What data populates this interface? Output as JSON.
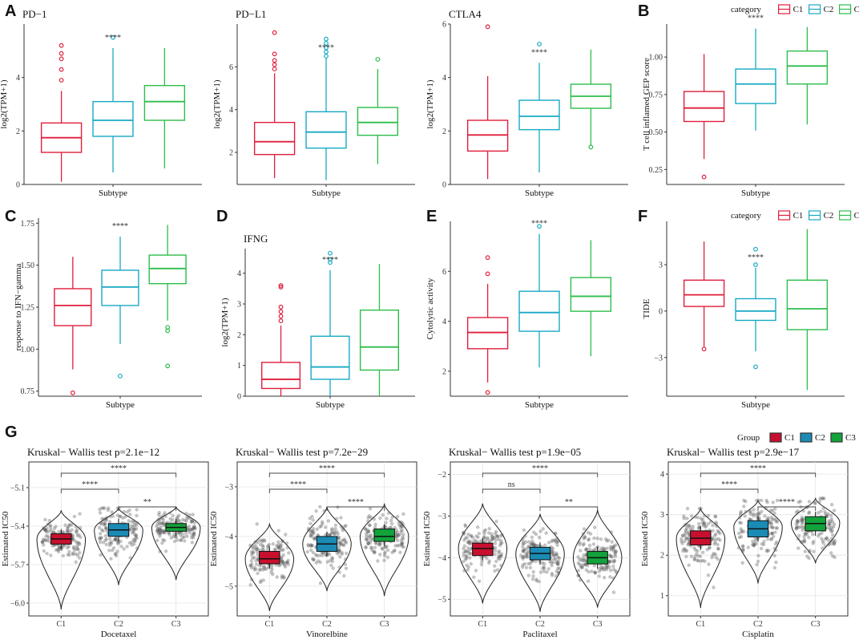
{
  "figure": {
    "legend_top": {
      "title": "category",
      "items": [
        "C1",
        "C2",
        "C3"
      ],
      "colors": [
        "#E01F3D",
        "#18A9C5",
        "#2DBE4B"
      ]
    },
    "legend_bottom": {
      "title": "Group",
      "items": [
        "C1",
        "C2",
        "C3"
      ],
      "colors": [
        "#C8102E",
        "#1B8BB5",
        "#12A33B"
      ]
    }
  },
  "chart_data": [
    {
      "type": "box",
      "panel": "A",
      "title": "PD−1",
      "xlabel": "Subtype",
      "ylabel": "log2(TPM+1)",
      "ylim": [
        0,
        6
      ],
      "yticks": [
        0,
        2,
        4
      ],
      "annotation": "****",
      "series": [
        {
          "name": "C1",
          "q1": 1.2,
          "median": 1.75,
          "q3": 2.3,
          "whisker_low": 0.1,
          "whisker_high": 3.5,
          "outliers": [
            3.9,
            4.3,
            4.7,
            4.9,
            5.2
          ]
        },
        {
          "name": "C2",
          "q1": 1.8,
          "median": 2.4,
          "q3": 3.1,
          "whisker_low": 0.45,
          "whisker_high": 5.1,
          "outliers": [
            5.5
          ]
        },
        {
          "name": "C3",
          "q1": 2.4,
          "median": 3.1,
          "q3": 3.7,
          "whisker_low": 0.6,
          "whisker_high": 5.1,
          "outliers": []
        }
      ]
    },
    {
      "type": "box",
      "panel": "",
      "title": "PD−L1",
      "xlabel": "Subtype",
      "ylabel": "log2(TPM+1)",
      "ylim": [
        0.5,
        8
      ],
      "yticks": [
        2,
        4,
        6
      ],
      "annotation": "****",
      "series": [
        {
          "name": "C1",
          "q1": 1.9,
          "median": 2.5,
          "q3": 3.4,
          "whisker_low": 0.8,
          "whisker_high": 5.7,
          "outliers": [
            5.9,
            6.1,
            6.3,
            6.6,
            7.6
          ]
        },
        {
          "name": "C2",
          "q1": 2.2,
          "median": 2.95,
          "q3": 3.9,
          "whisker_low": 0.7,
          "whisker_high": 6.4,
          "outliers": [
            6.5,
            6.7,
            6.9,
            7.1,
            7.3
          ]
        },
        {
          "name": "C3",
          "q1": 2.8,
          "median": 3.4,
          "q3": 4.1,
          "whisker_low": 1.45,
          "whisker_high": 5.9,
          "outliers": [
            6.35
          ]
        }
      ]
    },
    {
      "type": "box",
      "panel": "",
      "title": "CTLA4",
      "xlabel": "Subtype",
      "ylabel": "log2(TPM+1)",
      "ylim": [
        0,
        6
      ],
      "yticks": [
        0,
        2,
        4,
        6
      ],
      "annotation": "****",
      "series": [
        {
          "name": "C1",
          "q1": 1.25,
          "median": 1.85,
          "q3": 2.4,
          "whisker_low": 0.2,
          "whisker_high": 4.05,
          "outliers": [
            5.9
          ]
        },
        {
          "name": "C2",
          "q1": 2.05,
          "median": 2.55,
          "q3": 3.15,
          "whisker_low": 0.45,
          "whisker_high": 4.55,
          "outliers": [
            5.25
          ]
        },
        {
          "name": "C3",
          "q1": 2.85,
          "median": 3.3,
          "q3": 3.75,
          "whisker_low": 1.45,
          "whisker_high": 5.05,
          "outliers": [
            1.4
          ]
        }
      ]
    },
    {
      "type": "box",
      "panel": "B",
      "title": "",
      "xlabel": "Subtype",
      "ylabel": "T cell inflamed GEP score",
      "ylim": [
        0.15,
        1.22
      ],
      "yticks": [
        0.25,
        0.5,
        0.75,
        1.0
      ],
      "ytick_labels": [
        "0.25",
        "0.50",
        "0.75",
        "1.00"
      ],
      "annotation": "****",
      "series": [
        {
          "name": "C1",
          "q1": 0.57,
          "median": 0.66,
          "q3": 0.77,
          "whisker_low": 0.32,
          "whisker_high": 1.02,
          "outliers": [
            0.2
          ]
        },
        {
          "name": "C2",
          "q1": 0.69,
          "median": 0.82,
          "q3": 0.92,
          "whisker_low": 0.51,
          "whisker_high": 1.19,
          "outliers": []
        },
        {
          "name": "C3",
          "q1": 0.82,
          "median": 0.94,
          "q3": 1.04,
          "whisker_low": 0.55,
          "whisker_high": 1.2,
          "outliers": []
        }
      ]
    },
    {
      "type": "box",
      "panel": "C",
      "title": "",
      "xlabel": "Subtype",
      "ylabel": "response to IFN−gamma",
      "ylim": [
        0.72,
        1.78
      ],
      "yticks": [
        0.75,
        1.0,
        1.25,
        1.5,
        1.75
      ],
      "ytick_labels": [
        "0.75",
        "1.00",
        "1.25",
        "1.50",
        "1.75"
      ],
      "annotation": "****",
      "series": [
        {
          "name": "C1",
          "q1": 1.14,
          "median": 1.26,
          "q3": 1.36,
          "whisker_low": 0.88,
          "whisker_high": 1.55,
          "outliers": [
            0.74
          ]
        },
        {
          "name": "C2",
          "q1": 1.26,
          "median": 1.37,
          "q3": 1.47,
          "whisker_low": 1.03,
          "whisker_high": 1.67,
          "outliers": [
            0.84
          ]
        },
        {
          "name": "C3",
          "q1": 1.39,
          "median": 1.48,
          "q3": 1.56,
          "whisker_low": 1.17,
          "whisker_high": 1.74,
          "outliers": [
            1.11,
            1.13,
            0.9
          ]
        }
      ]
    },
    {
      "type": "box",
      "panel": "D",
      "title": "IFNG",
      "xlabel": "Subtype",
      "ylabel": "log2(TPM+1)",
      "ylim": [
        0,
        4.8
      ],
      "yticks": [
        0,
        1,
        2,
        3,
        4
      ],
      "annotation": "****",
      "series": [
        {
          "name": "C1",
          "q1": 0.25,
          "median": 0.55,
          "q3": 1.1,
          "whisker_low": 0.0,
          "whisker_high": 2.3,
          "outliers": [
            2.45,
            2.6,
            2.75,
            2.9,
            3.55,
            3.6
          ]
        },
        {
          "name": "C2",
          "q1": 0.55,
          "median": 0.95,
          "q3": 1.95,
          "whisker_low": 0.0,
          "whisker_high": 4.1,
          "outliers": [
            4.35,
            4.45,
            4.65
          ]
        },
        {
          "name": "C3",
          "q1": 0.85,
          "median": 1.6,
          "q3": 2.8,
          "whisker_low": 0.0,
          "whisker_high": 4.3,
          "outliers": []
        }
      ]
    },
    {
      "type": "box",
      "panel": "E",
      "title": "",
      "xlabel": "Subtype",
      "ylabel": "Cytolytic activity",
      "ylim": [
        1.0,
        8.0
      ],
      "yticks": [
        2,
        4,
        6
      ],
      "annotation": "****",
      "series": [
        {
          "name": "C1",
          "q1": 2.9,
          "median": 3.55,
          "q3": 4.15,
          "whisker_low": 1.55,
          "whisker_high": 5.5,
          "outliers": [
            1.15,
            5.9,
            6.55
          ]
        },
        {
          "name": "C2",
          "q1": 3.6,
          "median": 4.35,
          "q3": 5.2,
          "whisker_low": 2.15,
          "whisker_high": 7.5,
          "outliers": [
            7.8
          ]
        },
        {
          "name": "C3",
          "q1": 4.4,
          "median": 5.0,
          "q3": 5.75,
          "whisker_low": 2.6,
          "whisker_high": 7.25,
          "outliers": []
        }
      ]
    },
    {
      "type": "box",
      "panel": "F",
      "title": "",
      "xlabel": "Subtype",
      "ylabel": "TIDE",
      "ylim": [
        -5.5,
        5.8
      ],
      "yticks": [
        -3,
        0,
        3
      ],
      "annotation": "****",
      "series": [
        {
          "name": "C1",
          "q1": 0.3,
          "median": 1.05,
          "q3": 2.0,
          "whisker_low": -2.3,
          "whisker_high": 4.5,
          "outliers": [
            -2.45
          ]
        },
        {
          "name": "C2",
          "q1": -0.6,
          "median": 0.0,
          "q3": 0.8,
          "whisker_low": -2.6,
          "whisker_high": 2.8,
          "outliers": [
            3.0,
            4.0,
            -3.6
          ]
        },
        {
          "name": "C3",
          "q1": -1.2,
          "median": 0.15,
          "q3": 2.0,
          "whisker_low": -5.1,
          "whisker_high": 5.3,
          "outliers": []
        }
      ]
    },
    {
      "type": "violin",
      "panel": "G",
      "title": "Kruskal− Wallis test p=2.1e−12",
      "xlabel": "Docetaxel",
      "ylabel": "Estimated IC50",
      "ylim": [
        -6.1,
        -4.9
      ],
      "yticks": [
        -6.0,
        -5.7,
        -5.4,
        -5.1
      ],
      "ytick_labels": [
        "−6.0",
        "−5.7",
        "−5.4",
        "−5.1"
      ],
      "categories": [
        "C1",
        "C2",
        "C3"
      ],
      "series": [
        {
          "name": "C1",
          "q1": -5.54,
          "median": -5.5,
          "q3": -5.46,
          "min": -6.05,
          "max": -5.28,
          "mode": -5.5
        },
        {
          "name": "C2",
          "q1": -5.48,
          "median": -5.43,
          "q3": -5.38,
          "min": -5.86,
          "max": -5.26,
          "mode": -5.43
        },
        {
          "name": "C3",
          "q1": -5.44,
          "median": -5.41,
          "q3": -5.38,
          "min": -5.82,
          "max": -5.25,
          "mode": -5.41
        }
      ],
      "comparisons": [
        {
          "pair": [
            "C1",
            "C3"
          ],
          "label": "****"
        },
        {
          "pair": [
            "C1",
            "C2"
          ],
          "label": "****"
        },
        {
          "pair": [
            "C2",
            "C3"
          ],
          "label": "**"
        }
      ]
    },
    {
      "type": "violin",
      "panel": "",
      "title": "Kruskal− Wallis test p=7.2e−29",
      "xlabel": "Vinorelbine",
      "ylabel": "Estimated IC50",
      "ylim": [
        -5.6,
        -2.5
      ],
      "yticks": [
        -5,
        -4,
        -3
      ],
      "ytick_labels": [
        "−5",
        "−4",
        "−3"
      ],
      "categories": [
        "C1",
        "C2",
        "C3"
      ],
      "series": [
        {
          "name": "C1",
          "q1": -4.55,
          "median": -4.45,
          "q3": -4.3,
          "min": -5.5,
          "max": -3.75,
          "mode": -4.45
        },
        {
          "name": "C2",
          "q1": -4.3,
          "median": -4.15,
          "q3": -4.0,
          "min": -5.1,
          "max": -3.4,
          "mode": -4.15
        },
        {
          "name": "C3",
          "q1": -4.1,
          "median": -4.0,
          "q3": -3.85,
          "min": -5.2,
          "max": -3.35,
          "mode": -4.0
        }
      ],
      "comparisons": [
        {
          "pair": [
            "C1",
            "C3"
          ],
          "label": "****"
        },
        {
          "pair": [
            "C1",
            "C2"
          ],
          "label": "****"
        },
        {
          "pair": [
            "C2",
            "C3"
          ],
          "label": "****"
        }
      ]
    },
    {
      "type": "violin",
      "panel": "",
      "title": "Kruskal− Wallis test p=1.9e−05",
      "xlabel": "Paclitaxel",
      "ylabel": "Estimated IC50",
      "ylim": [
        -5.4,
        -1.7
      ],
      "yticks": [
        -5,
        -4,
        -3,
        -2
      ],
      "ytick_labels": [
        "−5",
        "−4",
        "−3",
        "−2"
      ],
      "categories": [
        "C1",
        "C2",
        "C3"
      ],
      "series": [
        {
          "name": "C1",
          "q1": -3.95,
          "median": -3.78,
          "q3": -3.65,
          "min": -5.1,
          "max": -2.7,
          "mode": -3.78
        },
        {
          "name": "C2",
          "q1": -4.05,
          "median": -3.9,
          "q3": -3.75,
          "min": -5.3,
          "max": -2.95,
          "mode": -3.9
        },
        {
          "name": "C3",
          "q1": -4.15,
          "median": -4.0,
          "q3": -3.85,
          "min": -5.2,
          "max": -2.85,
          "mode": -4.0
        }
      ],
      "comparisons": [
        {
          "pair": [
            "C1",
            "C3"
          ],
          "label": "****"
        },
        {
          "pair": [
            "C1",
            "C2"
          ],
          "label": "ns"
        },
        {
          "pair": [
            "C2",
            "C3"
          ],
          "label": "**"
        }
      ]
    },
    {
      "type": "violin",
      "panel": "",
      "title": "Kruskal− Wallis test p=2.9e−17",
      "xlabel": "Cisplatin",
      "ylabel": "Estimated IC50",
      "ylim": [
        0.5,
        4.3
      ],
      "yticks": [
        1,
        2,
        3,
        4
      ],
      "categories": [
        "C1",
        "C2",
        "C3"
      ],
      "series": [
        {
          "name": "C1",
          "q1": 2.25,
          "median": 2.42,
          "q3": 2.6,
          "min": 0.7,
          "max": 3.15,
          "mode": 2.42
        },
        {
          "name": "C2",
          "q1": 2.45,
          "median": 2.65,
          "q3": 2.85,
          "min": 1.3,
          "max": 3.35,
          "mode": 2.7
        },
        {
          "name": "C3",
          "q1": 2.6,
          "median": 2.78,
          "q3": 2.95,
          "min": 1.8,
          "max": 3.4,
          "mode": 2.8
        }
      ],
      "comparisons": [
        {
          "pair": [
            "C1",
            "C3"
          ],
          "label": "****"
        },
        {
          "pair": [
            "C1",
            "C2"
          ],
          "label": "****"
        },
        {
          "pair": [
            "C2",
            "C3"
          ],
          "label": "****"
        }
      ]
    }
  ]
}
